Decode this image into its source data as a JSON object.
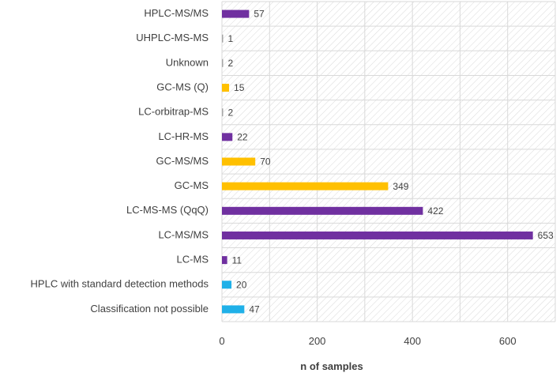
{
  "chart_data": {
    "type": "bar",
    "orientation": "horizontal",
    "categories": [
      "Classification not possible",
      "HPLC with standard detection methods",
      "LC-MS",
      "LC-MS/MS",
      "LC-MS-MS (QqQ)",
      "GC-MS",
      "GC-MS/MS",
      "LC-HR-MS",
      "LC-orbitrap-MS",
      "GC-MS (Q)",
      "Unknown",
      "UHPLC-MS-MS",
      "HPLC-MS/MS"
    ],
    "values": [
      47,
      20,
      11,
      653,
      422,
      349,
      70,
      22,
      2,
      15,
      2,
      1,
      57
    ],
    "value_labels": [
      "47",
      "20",
      "11",
      "653",
      "422",
      "349",
      "70",
      "22",
      "2",
      "15",
      "2",
      "1",
      "57"
    ],
    "bar_colors": [
      "#1fb0e8",
      "#1fb0e8",
      "#7030a0",
      "#7030a0",
      "#7030a0",
      "#ffc000",
      "#ffc000",
      "#7030a0",
      "#a6a6a6",
      "#ffc000",
      "#a6a6a6",
      "#a6a6a6",
      "#7030a0"
    ],
    "x_ticks": [
      "0",
      "200",
      "400",
      "600"
    ],
    "xlim": [
      0,
      700
    ],
    "xlabel": "n of samples",
    "ylabel": "",
    "title": "",
    "grid": true,
    "plot_background": "hatched",
    "legend": "none"
  }
}
